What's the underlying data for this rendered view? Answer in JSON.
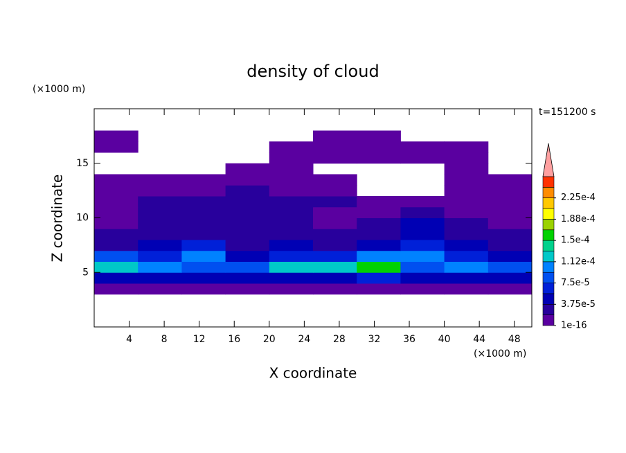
{
  "chart_data": {
    "type": "contour",
    "title": "density of cloud",
    "xlabel": "X coordinate",
    "ylabel": "Z coordinate",
    "x_unit": "(×1000 m)",
    "y_unit": "(×1000 m)",
    "annotation": "t=151200 s",
    "xlim": [
      0,
      50
    ],
    "ylim": [
      0,
      20
    ],
    "xticks": [
      4,
      8,
      12,
      16,
      20,
      24,
      28,
      32,
      36,
      40,
      44,
      48
    ],
    "yticks": [
      5,
      10,
      15
    ],
    "x_bins": [
      0,
      5,
      10,
      15,
      20,
      25,
      30,
      35,
      40,
      45,
      50
    ],
    "z_bins": [
      3,
      4,
      5,
      6,
      7,
      8,
      9,
      10,
      11,
      12,
      13,
      14,
      15,
      16,
      17,
      18
    ],
    "values": [
      [
        1e-05,
        1e-05,
        1e-05,
        1e-05,
        1e-05,
        1e-05,
        1e-05,
        1e-05,
        1e-05,
        1e-05
      ],
      [
        4e-05,
        5e-05,
        4e-05,
        4.5e-05,
        5e-05,
        5e-05,
        6e-05,
        4e-05,
        5e-05,
        4e-05
      ],
      [
        0.00013,
        0.00011,
        9e-05,
        8e-05,
        0.00012,
        0.00012,
        0.00015,
        9e-05,
        0.00011,
        9e-05
      ],
      [
        8e-05,
        7e-05,
        0.0001,
        5e-05,
        7e-05,
        6e-05,
        0.00011,
        0.0001,
        6e-05,
        5e-05
      ],
      [
        3e-05,
        4e-05,
        6e-05,
        3e-05,
        4e-05,
        3e-05,
        5e-05,
        7e-05,
        4e-05,
        3e-05
      ],
      [
        2e-05,
        2.5e-05,
        3e-05,
        2e-05,
        2.5e-05,
        2e-05,
        3e-05,
        5e-05,
        2.5e-05,
        2e-05
      ],
      [
        1e-05,
        2e-05,
        2.5e-05,
        2e-05,
        2e-05,
        1.5e-05,
        2e-05,
        4e-05,
        2e-05,
        1.5e-05
      ],
      [
        1.5e-05,
        2e-05,
        2e-05,
        2e-05,
        2e-05,
        1.5e-05,
        1.5e-05,
        2e-05,
        1e-05,
        1e-05
      ],
      [
        1e-05,
        2e-05,
        2.5e-05,
        2e-05,
        2e-05,
        2e-05,
        1e-05,
        1e-05,
        1e-05,
        1e-05
      ],
      [
        1e-05,
        1e-05,
        1.5e-05,
        2e-05,
        1.5e-05,
        1e-05,
        null,
        null,
        1e-05,
        1e-05
      ],
      [
        1e-05,
        1e-05,
        1e-05,
        1e-05,
        1e-05,
        1e-05,
        null,
        null,
        1e-05,
        1e-05
      ],
      [
        null,
        null,
        null,
        1e-05,
        1e-05,
        null,
        null,
        null,
        1e-05,
        null
      ],
      [
        null,
        null,
        null,
        null,
        1e-05,
        1e-05,
        1e-05,
        1e-05,
        1e-05,
        null
      ],
      [
        1e-05,
        null,
        null,
        null,
        1e-05,
        1e-05,
        1e-05,
        1e-05,
        1e-05,
        null
      ],
      [
        1e-05,
        null,
        null,
        null,
        null,
        1e-05,
        1e-05,
        null,
        null,
        null
      ]
    ],
    "colorbar": {
      "boundaries": [
        1e-16,
        1.875e-05,
        3.75e-05,
        5.625e-05,
        7.5e-05,
        9.375e-05,
        0.0001125,
        0.00013125,
        0.00015,
        0.00016875,
        0.0001875,
        0.00020625,
        0.000225,
        0.00024375,
        0.0002625
      ],
      "colors": [
        "#5a00a0",
        "#28009c",
        "#0000b4",
        "#0020d8",
        "#0050f0",
        "#0082ff",
        "#00c8c8",
        "#00d28c",
        "#00d200",
        "#9bd200",
        "#ffff00",
        "#ffc800",
        "#ff8c00",
        "#ff3200"
      ],
      "over_color": "#ffa0a0",
      "ticks": [
        {
          "value": 1e-16,
          "label": "1e-16"
        },
        {
          "value": 3.75e-05,
          "label": "3.75e-5"
        },
        {
          "value": 7.5e-05,
          "label": "7.5e-5"
        },
        {
          "value": 0.0001125,
          "label": "1.12e-4"
        },
        {
          "value": 0.00015,
          "label": "1.5e-4"
        },
        {
          "value": 0.0001875,
          "label": "1.88e-4"
        },
        {
          "value": 0.000225,
          "label": "2.25e-4"
        }
      ]
    }
  }
}
